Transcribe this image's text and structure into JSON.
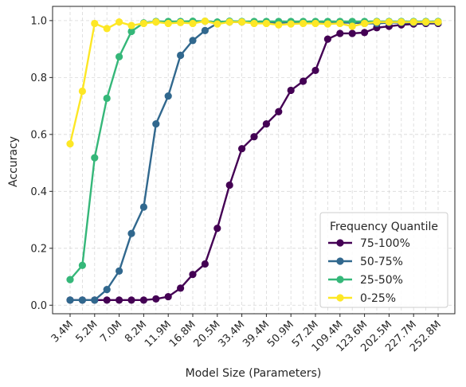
{
  "chart_data": {
    "type": "line",
    "title": "",
    "xlabel": "Model Size (Parameters)",
    "ylabel": "Accuracy",
    "ylim": [
      -0.03,
      1.05
    ],
    "yticks": [
      0.0,
      0.2,
      0.4,
      0.6,
      0.8,
      1.0
    ],
    "ytick_labels": [
      "0.0",
      "0.2",
      "0.4",
      "0.6",
      "0.8",
      "1.0"
    ],
    "xticks_labeled_every": 2,
    "x_tick_labels": [
      "3.4M",
      "5.2M",
      "7.0M",
      "8.2M",
      "11.9M",
      "16.8M",
      "20.5M",
      "33.4M",
      "39.4M",
      "50.9M",
      "57.2M",
      "109.4M",
      "123.6M",
      "202.5M",
      "227.7M",
      "252.8M"
    ],
    "grid": true,
    "legend": {
      "title": "Frequency Quantile",
      "placement": "lower-right"
    },
    "series": [
      {
        "name": "75-100%",
        "color": "#440154",
        "values": [
          0.018,
          0.018,
          0.018,
          0.018,
          0.018,
          0.018,
          0.018,
          0.022,
          0.03,
          0.06,
          0.108,
          0.145,
          0.27,
          0.422,
          0.55,
          0.592,
          0.637,
          0.68,
          0.755,
          0.787,
          0.825,
          0.935,
          0.955,
          0.955,
          0.958,
          0.975,
          0.98,
          0.985,
          0.988,
          0.99,
          0.99
        ]
      },
      {
        "name": "50-75%",
        "color": "#31688e",
        "values": [
          0.018,
          0.018,
          0.018,
          0.055,
          0.12,
          0.252,
          0.345,
          0.637,
          0.735,
          0.878,
          0.93,
          0.965,
          0.99,
          0.995,
          0.995,
          0.995,
          0.995,
          0.992,
          0.995,
          0.995,
          0.995,
          0.99,
          0.993,
          0.993,
          0.99,
          0.99,
          0.993,
          0.993,
          0.993,
          0.993,
          0.993
        ]
      },
      {
        "name": "25-50%",
        "color": "#35b779",
        "values": [
          0.09,
          0.14,
          0.518,
          0.727,
          0.873,
          0.962,
          0.992,
          0.997,
          0.997,
          0.997,
          0.998,
          0.998,
          0.995,
          0.998,
          0.997,
          0.997,
          0.997,
          0.997,
          0.997,
          0.997,
          0.997,
          0.997,
          0.997,
          0.997,
          0.997,
          0.997,
          0.997,
          0.997,
          0.997,
          0.997,
          0.997
        ]
      },
      {
        "name": "0-25%",
        "color": "#fde725",
        "values": [
          0.567,
          0.752,
          0.99,
          0.972,
          0.995,
          0.983,
          0.99,
          0.995,
          0.99,
          0.993,
          0.99,
          0.998,
          0.988,
          0.995,
          0.995,
          0.99,
          0.99,
          0.985,
          0.988,
          0.99,
          0.99,
          0.988,
          0.99,
          0.98,
          0.99,
          0.995,
          0.995,
          0.995,
          0.995,
          0.995,
          0.995
        ]
      }
    ]
  }
}
